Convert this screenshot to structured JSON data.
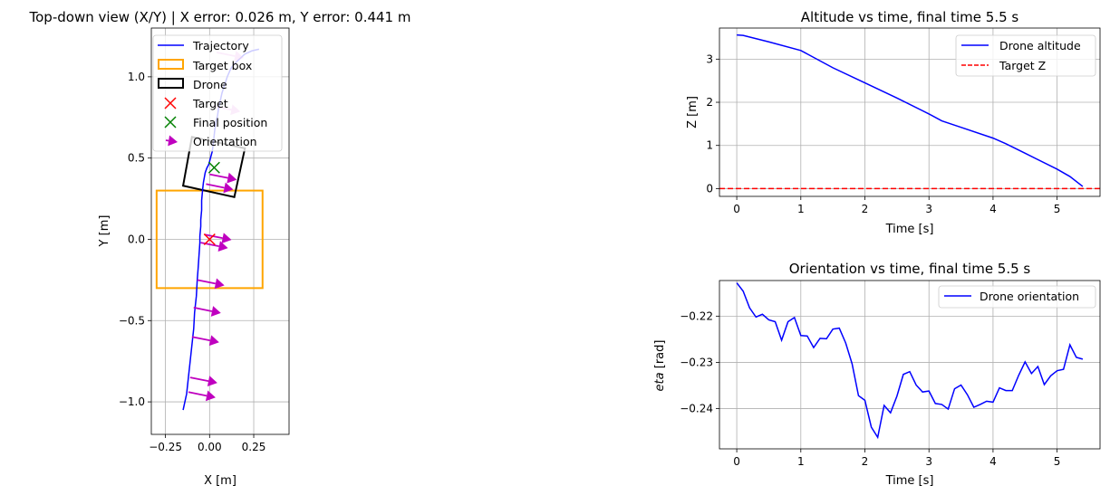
{
  "colors": {
    "trajectory": "#0000ff",
    "target_box": "#ffa500",
    "drone": "#000000",
    "target_marker": "#ff0000",
    "final_marker": "#008000",
    "orientation": "#bf00bf",
    "target_z": "#ff0000",
    "grid": "#b0b0b0"
  },
  "chart_data": [
    {
      "type": "line",
      "title": "Top-down view (X/Y) | X error: 0.026 m, Y error: 0.441 m",
      "xlabel": "X [m]",
      "ylabel": "Y [m]",
      "xlim": [
        -0.33,
        0.45
      ],
      "ylim": [
        -1.2,
        1.3
      ],
      "xticks": [
        -0.25,
        0.0,
        0.25
      ],
      "xtick_labels": [
        "−0.25",
        "0.00",
        "0.25"
      ],
      "yticks": [
        -1.0,
        -0.5,
        0.0,
        0.5,
        1.0
      ],
      "ytick_labels": [
        "−1.0",
        "−0.5",
        "0.0",
        "0.5",
        "1.0"
      ],
      "grid": true,
      "legend_position": "top-left",
      "legend": [
        "Trajectory",
        "Target box",
        "Drone",
        "Target",
        "Final position",
        "Orientation"
      ],
      "trajectory": {
        "x": [
          -0.15,
          -0.13,
          -0.12,
          -0.11,
          -0.1,
          -0.09,
          -0.085,
          -0.075,
          -0.07,
          -0.065,
          -0.06,
          -0.055,
          -0.055,
          -0.05,
          -0.05,
          -0.045,
          -0.045,
          -0.04,
          -0.035,
          -0.03,
          -0.025,
          -0.015,
          -0.005,
          0.0,
          0.005,
          0.01,
          0.015,
          0.02,
          0.025,
          0.03,
          0.035,
          0.045,
          0.05,
          0.06,
          0.07,
          0.085,
          0.1,
          0.12,
          0.14,
          0.16,
          0.18,
          0.2,
          0.24,
          0.28
        ],
        "y": [
          -1.05,
          -0.95,
          -0.85,
          -0.75,
          -0.65,
          -0.55,
          -0.45,
          -0.35,
          -0.25,
          -0.18,
          -0.1,
          -0.02,
          0.02,
          0.08,
          0.12,
          0.18,
          0.24,
          0.3,
          0.35,
          0.38,
          0.41,
          0.44,
          0.46,
          0.48,
          0.5,
          0.52,
          0.54,
          0.58,
          0.63,
          0.68,
          0.72,
          0.76,
          0.8,
          0.85,
          0.9,
          0.95,
          1.0,
          1.05,
          1.08,
          1.1,
          1.12,
          1.14,
          1.16,
          1.17
        ]
      },
      "target_box": {
        "xmin": -0.3,
        "xmax": 0.3,
        "ymin": -0.3,
        "ymax": 0.3
      },
      "drone_box": {
        "x": [
          -0.15,
          0.14,
          0.2,
          -0.1
        ],
        "y": [
          0.33,
          0.26,
          0.56,
          0.63
        ]
      },
      "target": {
        "x": 0.0,
        "y": 0.0
      },
      "final_position": {
        "x": 0.026,
        "y": 0.441
      },
      "orientation_arrows": {
        "x": [
          -0.12,
          -0.11,
          -0.1,
          -0.09,
          -0.07,
          -0.05,
          -0.03,
          -0.02,
          0.0,
          0.02,
          0.04
        ],
        "y": [
          -0.94,
          -0.85,
          -0.6,
          -0.42,
          -0.25,
          -0.02,
          0.03,
          0.34,
          0.4,
          0.82,
          1.15
        ]
      }
    },
    {
      "type": "line",
      "title": "Altitude vs time, final time 5.5 s",
      "xlabel": "Time [s]",
      "ylabel": "Z [m]",
      "xlim": [
        -0.27,
        5.67
      ],
      "ylim": [
        -0.18,
        3.72
      ],
      "xticks": [
        0,
        1,
        2,
        3,
        4,
        5
      ],
      "yticks": [
        0,
        1,
        2,
        3
      ],
      "grid": true,
      "legend_position": "top-right",
      "series": [
        {
          "name": "Drone altitude",
          "x": [
            0.0,
            0.1,
            0.5,
            1.0,
            1.1,
            1.5,
            2.0,
            2.5,
            3.0,
            3.2,
            3.5,
            4.0,
            4.2,
            4.5,
            5.0,
            5.2,
            5.4
          ],
          "y": [
            3.56,
            3.55,
            3.4,
            3.2,
            3.12,
            2.8,
            2.45,
            2.1,
            1.73,
            1.57,
            1.42,
            1.17,
            1.04,
            0.82,
            0.45,
            0.28,
            0.05
          ]
        },
        {
          "name": "Target Z",
          "x": [
            -0.27,
            5.67
          ],
          "y": [
            0.0,
            0.0
          ]
        }
      ]
    },
    {
      "type": "line",
      "title": "Orientation vs time, final time 5.5 s",
      "xlabel": "Time [s]",
      "ylabel": "heta [rad]",
      "ylabel_prefix": "h",
      "ylabel_rest": "eta",
      "ylabel_unit": " [rad]",
      "xlim": [
        -0.27,
        5.67
      ],
      "ylim": [
        -0.2487,
        -0.2123
      ],
      "xticks": [
        0,
        1,
        2,
        3,
        4,
        5
      ],
      "yticks": [
        -0.24,
        -0.23,
        -0.22
      ],
      "ytick_labels": [
        "−0.24",
        "−0.23",
        "−0.22"
      ],
      "grid": true,
      "legend_position": "top-right",
      "series": [
        {
          "name": "Drone orientation",
          "x": [
            0.0,
            0.1,
            0.2,
            0.3,
            0.4,
            0.5,
            0.6,
            0.7,
            0.8,
            0.9,
            1.0,
            1.1,
            1.2,
            1.3,
            1.4,
            1.5,
            1.6,
            1.7,
            1.8,
            1.9,
            2.0,
            2.1,
            2.2,
            2.3,
            2.4,
            2.5,
            2.6,
            2.7,
            2.8,
            2.9,
            3.0,
            3.1,
            3.2,
            3.3,
            3.4,
            3.5,
            3.6,
            3.7,
            3.8,
            3.9,
            4.0,
            4.1,
            4.2,
            4.3,
            4.4,
            4.5,
            4.6,
            4.7,
            4.8,
            4.9,
            5.0,
            5.1,
            5.2,
            5.3,
            5.4
          ],
          "y": [
            -0.2128,
            -0.2146,
            -0.2182,
            -0.2202,
            -0.2196,
            -0.2208,
            -0.2212,
            -0.2252,
            -0.2212,
            -0.2203,
            -0.2242,
            -0.2243,
            -0.2268,
            -0.2248,
            -0.2249,
            -0.2228,
            -0.2226,
            -0.2258,
            -0.2303,
            -0.2372,
            -0.2382,
            -0.244,
            -0.2462,
            -0.2393,
            -0.2409,
            -0.2373,
            -0.2326,
            -0.232,
            -0.2349,
            -0.2364,
            -0.2362,
            -0.2389,
            -0.2391,
            -0.2401,
            -0.2357,
            -0.2349,
            -0.237,
            -0.2397,
            -0.2391,
            -0.2384,
            -0.2386,
            -0.2355,
            -0.2361,
            -0.2361,
            -0.2328,
            -0.2299,
            -0.2324,
            -0.2309,
            -0.2348,
            -0.2329,
            -0.2318,
            -0.2315,
            -0.2262,
            -0.2289,
            -0.2293
          ]
        }
      ]
    }
  ]
}
